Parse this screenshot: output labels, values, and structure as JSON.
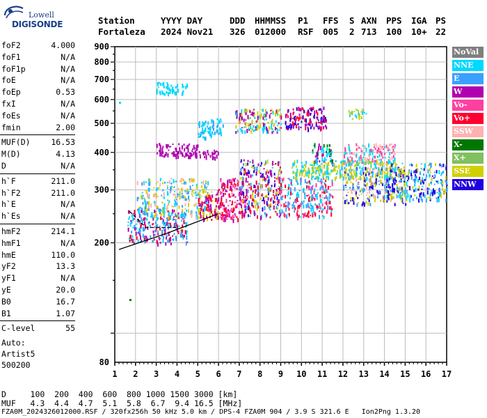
{
  "logo": {
    "line1": "Lowell",
    "line2": "DIGISONDE"
  },
  "header": {
    "labels": [
      "Station",
      "YYYY DAY",
      "DDD",
      "HHMMSS",
      "P1",
      "FFS",
      "S",
      "AXN",
      "PPS",
      "IGA",
      "PS"
    ],
    "values": [
      "Fortaleza",
      "2024 Nov21",
      "326",
      "012000",
      "RSF",
      "005",
      "2",
      "713",
      "100",
      "10+",
      "22"
    ]
  },
  "params": {
    "group1": [
      {
        "name": "foF2",
        "value": "4.000"
      },
      {
        "name": "foF1",
        "value": "N/A"
      },
      {
        "name": "foF1p",
        "value": "N/A"
      },
      {
        "name": "foE",
        "value": "N/A"
      },
      {
        "name": "foEp",
        "value": "0.53"
      },
      {
        "name": "fxI",
        "value": "N/A"
      },
      {
        "name": "foEs",
        "value": "N/A"
      },
      {
        "name": "fmin",
        "value": "2.00"
      }
    ],
    "group2": [
      {
        "name": "MUF(D)",
        "value": "16.53"
      },
      {
        "name": "M(D)",
        "value": "4.13"
      },
      {
        "name": "D",
        "value": "N/A"
      }
    ],
    "group3": [
      {
        "name": "h`F",
        "value": "211.0"
      },
      {
        "name": "h`F2",
        "value": "211.0"
      },
      {
        "name": "h`E",
        "value": "N/A"
      },
      {
        "name": "h`Es",
        "value": "N/A"
      }
    ],
    "group4": [
      {
        "name": "hmF2",
        "value": "214.1"
      },
      {
        "name": "hmF1",
        "value": "N/A"
      },
      {
        "name": "hmE",
        "value": "110.0"
      },
      {
        "name": "yF2",
        "value": "13.3"
      },
      {
        "name": "yF1",
        "value": "N/A"
      },
      {
        "name": "yE",
        "value": "20.0"
      },
      {
        "name": "B0",
        "value": "16.7"
      },
      {
        "name": "B1",
        "value": "1.07"
      }
    ],
    "group5": [
      {
        "name": "C-level",
        "value": "55"
      }
    ]
  },
  "auto": {
    "line1": "Auto:",
    "line2": "Artist5",
    "line3": "500200"
  },
  "legend": [
    {
      "label": "NoVal",
      "color": "#7f7f7f"
    },
    {
      "label": "NNE",
      "color": "#00d8ff"
    },
    {
      "label": "E",
      "color": "#3aa0ff"
    },
    {
      "label": "W",
      "color": "#b000b0"
    },
    {
      "label": "Vo-",
      "color": "#ff40a0"
    },
    {
      "label": "Vo+",
      "color": "#ff0030"
    },
    {
      "label": "SSW",
      "color": "#ffb0b0"
    },
    {
      "label": "X-",
      "color": "#007800"
    },
    {
      "label": "X+",
      "color": "#80c060"
    },
    {
      "label": "SSE",
      "color": "#d0d000"
    },
    {
      "label": "NNW",
      "color": "#2000e0"
    }
  ],
  "footer": {
    "d_row": "D     100  200  400  600  800 1000 1500 3000 [km]",
    "muf_row": "MUF   4.3  4.4  4.7  5.1  5.8  6.7  9.4 16.5 [MHz]",
    "file_row": "FZA0M_2024326012000.RSF / 320fx256h 50 kHz 5.0 km / DPS-4 FZA0M 904 / 3.9 S 321.6 E   Ion2Png 1.3.20"
  },
  "chart_data": {
    "type": "scatter",
    "x_ticks": [
      "1",
      "2",
      "3",
      "4",
      "5",
      "6",
      "7",
      "8",
      "9",
      "10",
      "11",
      "12",
      "13",
      "14",
      "15",
      "16",
      "17"
    ],
    "y_ticks": [
      "80",
      "200",
      "300",
      "400",
      "500",
      "600",
      "700",
      "800",
      "900"
    ],
    "xlim": [
      1,
      17
    ],
    "ylim": [
      80,
      900
    ],
    "y_scale": "log",
    "grid": true,
    "legend_position": "right",
    "trace_lines": [
      {
        "style": "solid",
        "points": [
          [
            1.2,
            190
          ],
          [
            3.5,
            215
          ],
          [
            6.0,
            250
          ]
        ]
      },
      {
        "style": "dashed",
        "points": [
          [
            1.7,
            255
          ],
          [
            2.5,
            225
          ],
          [
            4.0,
            225
          ]
        ]
      }
    ],
    "clusters": [
      {
        "x": [
          1.6,
          4.5
        ],
        "y": [
          200,
          260
        ],
        "colors": [
          5,
          1,
          2,
          3
        ]
      },
      {
        "x": [
          2.0,
          5.5
        ],
        "y": [
          245,
          330
        ],
        "colors": [
          1,
          2,
          6,
          9
        ]
      },
      {
        "x": [
          3.0,
          5.0
        ],
        "y": [
          390,
          430
        ],
        "colors": [
          3
        ]
      },
      {
        "x": [
          4.5,
          6.0
        ],
        "y": [
          385,
          410
        ],
        "colors": [
          3
        ]
      },
      {
        "x": [
          5.0,
          6.0
        ],
        "y": [
          240,
          300
        ],
        "colors": [
          5,
          3,
          9
        ]
      },
      {
        "x": [
          6.0,
          7.3
        ],
        "y": [
          240,
          330
        ],
        "colors": [
          5,
          4,
          3
        ]
      },
      {
        "x": [
          7.0,
          9.0
        ],
        "y": [
          245,
          380
        ],
        "colors": [
          5,
          3,
          10,
          9,
          2
        ]
      },
      {
        "x": [
          8.9,
          11.5
        ],
        "y": [
          245,
          330
        ],
        "colors": [
          5,
          2,
          1,
          4
        ]
      },
      {
        "x": [
          10.5,
          11.5
        ],
        "y": [
          370,
          430
        ],
        "colors": [
          7,
          1,
          3
        ]
      },
      {
        "x": [
          12.0,
          14.5
        ],
        "y": [
          370,
          430
        ],
        "colors": [
          4,
          1,
          6
        ]
      },
      {
        "x": [
          12.0,
          15.0
        ],
        "y": [
          270,
          360
        ],
        "colors": [
          2,
          6,
          9,
          10
        ]
      },
      {
        "x": [
          14.0,
          17.0
        ],
        "y": [
          280,
          370
        ],
        "colors": [
          10,
          2,
          1,
          9
        ]
      },
      {
        "x": [
          6.8,
          9.0
        ],
        "y": [
          470,
          560
        ],
        "colors": [
          1,
          3,
          9
        ]
      },
      {
        "x": [
          9.2,
          11.2
        ],
        "y": [
          480,
          570
        ],
        "colors": [
          10,
          3,
          5
        ]
      },
      {
        "x": [
          5.0,
          6.2
        ],
        "y": [
          450,
          520
        ],
        "colors": [
          1,
          2
        ]
      },
      {
        "x": [
          12.2,
          13.2
        ],
        "y": [
          520,
          560
        ],
        "colors": [
          1,
          9
        ]
      },
      {
        "x": [
          3.0,
          4.5
        ],
        "y": [
          630,
          690
        ],
        "colors": [
          1
        ]
      },
      {
        "x": [
          9.5,
          14.5
        ],
        "y": [
          330,
          380
        ],
        "colors": [
          9,
          1
        ]
      }
    ],
    "stray_points": [
      [
        1.7,
        130,
        7
      ],
      [
        1.2,
        590,
        1
      ]
    ]
  }
}
